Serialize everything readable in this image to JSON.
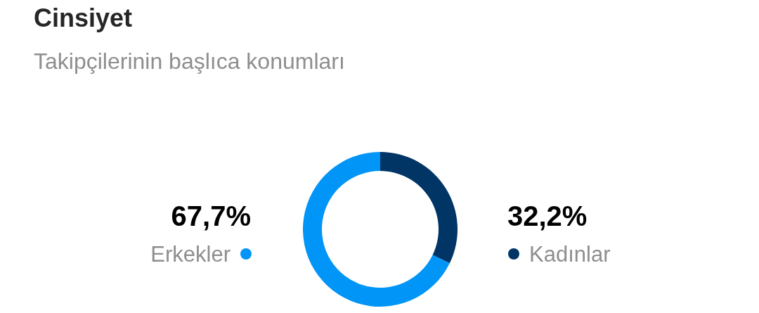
{
  "chart_data": {
    "type": "donut",
    "title": "Cinsiyet",
    "subtitle": "Takipçilerinin başlıca konumları",
    "categories": [
      "Kadınlar",
      "Erkekler"
    ],
    "values": [
      32.2,
      67.7
    ],
    "value_labels": [
      "32,2%",
      "67,7%"
    ],
    "colors": [
      "#003566",
      "#0095f6"
    ]
  }
}
